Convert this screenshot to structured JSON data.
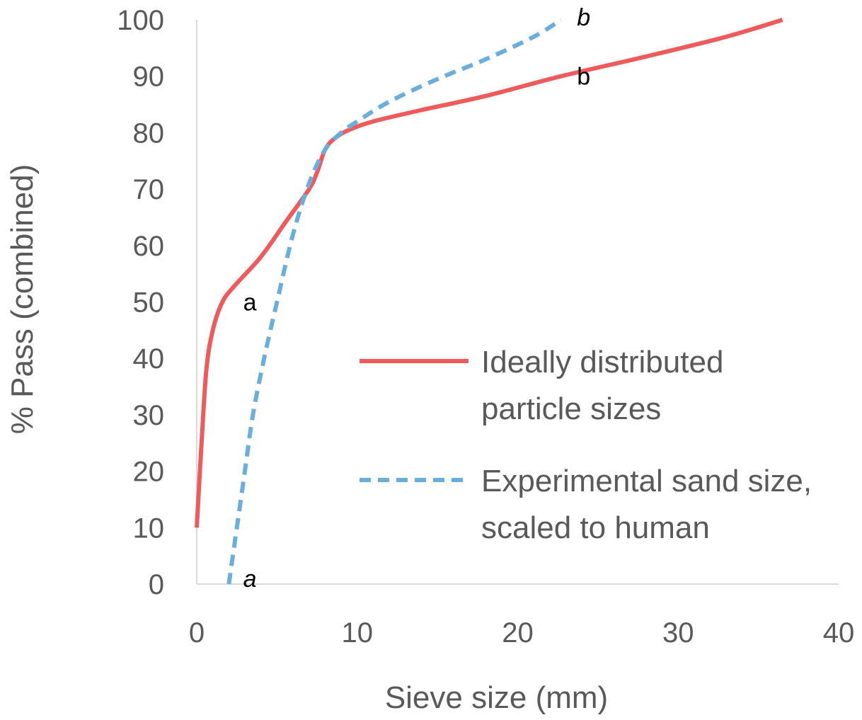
{
  "chart_data": {
    "type": "line",
    "xlabel": "Sieve size (mm)",
    "ylabel": "% Pass (combined)",
    "xlim": [
      0,
      40
    ],
    "ylim": [
      0,
      100
    ],
    "xticks": [
      "0",
      "10",
      "20",
      "30",
      "40"
    ],
    "yticks": [
      "0",
      "10",
      "20",
      "30",
      "40",
      "50",
      "60",
      "70",
      "80",
      "90",
      "100"
    ],
    "grid": false,
    "legend_position": "right-center",
    "series": [
      {
        "name": "Ideally distributed particle sizes",
        "name_lines": [
          "Ideally distributed",
          "particle sizes"
        ],
        "color": "#f05a5a",
        "style": "solid",
        "x": [
          0,
          0.3,
          0.6,
          1.0,
          1.6,
          2.4,
          4.0,
          5.5,
          7.0,
          7.5,
          8.0,
          8.6,
          9.5,
          11.0,
          14.0,
          18.0,
          22.7,
          28.0,
          33.0,
          36.5
        ],
        "y": [
          10,
          25,
          38,
          45,
          50,
          53,
          58,
          64,
          70,
          73,
          77,
          79,
          80.5,
          82,
          84,
          86.5,
          90,
          93.5,
          97,
          100
        ]
      },
      {
        "name": "Experimental sand size, scaled to human",
        "name_lines": [
          "Experimental sand size,",
          "scaled to human"
        ],
        "color": "#6aaee0",
        "style": "dashed",
        "x": [
          2.0,
          2.5,
          3.0,
          3.5,
          4.2,
          5.0,
          6.0,
          7.0,
          8.0,
          9.0,
          10.0,
          12.0,
          15.0,
          18.0,
          21.0,
          22.7
        ],
        "y": [
          0,
          10,
          20,
          30,
          40,
          50,
          62,
          71,
          77,
          80,
          82,
          85.5,
          89.5,
          93,
          97,
          100
        ]
      }
    ],
    "annotations": [
      {
        "text": "a",
        "x": 1.9,
        "y": 50,
        "italic": false
      },
      {
        "text": "b",
        "x": 22.7,
        "y": 90,
        "italic": false
      },
      {
        "text": "a",
        "x": 1.9,
        "y": 1,
        "italic": true
      },
      {
        "text": "b",
        "x": 22.7,
        "y": 100.5,
        "italic": true
      }
    ]
  }
}
